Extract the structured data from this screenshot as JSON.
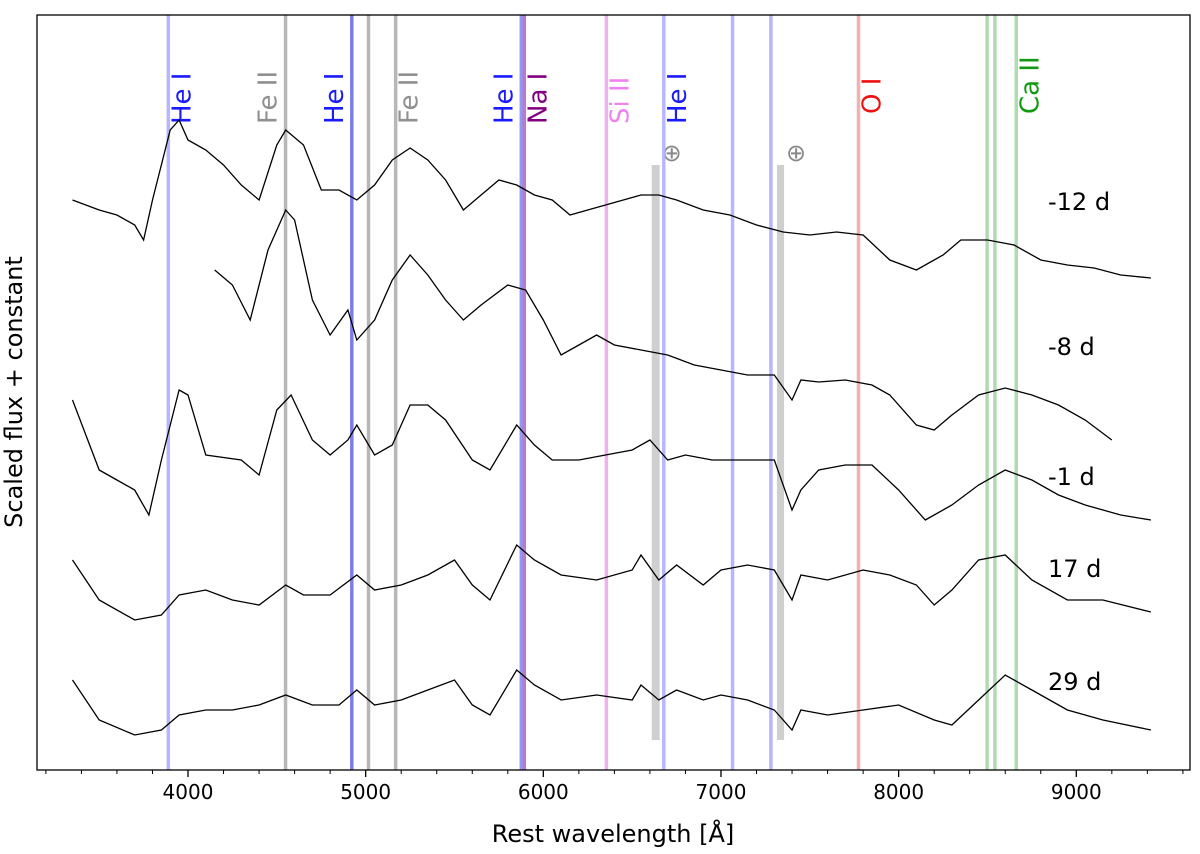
{
  "chart_data": {
    "type": "line",
    "xlabel": "Rest wavelength [Å]",
    "ylabel": "Scaled flux + constant",
    "xlim": [
      3150,
      9640
    ],
    "ylim": [
      0,
      755
    ],
    "xticks": [
      4000,
      5000,
      6000,
      7000,
      8000,
      9000
    ],
    "xminorticks": [
      3200,
      3400,
      3600,
      3800,
      4200,
      4400,
      4600,
      4800,
      5200,
      5400,
      5600,
      5800,
      6200,
      6400,
      6600,
      6800,
      7200,
      7400,
      7600,
      7800,
      8200,
      8400,
      8600,
      8800,
      9200,
      9400,
      9600
    ],
    "color": "#000000",
    "series": [
      {
        "name": "-12 d",
        "x": [
          3350,
          3500,
          3600,
          3700,
          3750,
          3800,
          3900,
          3950,
          4000,
          4100,
          4200,
          4300,
          4400,
          4500,
          4550,
          4650,
          4750,
          4850,
          4950,
          5050,
          5150,
          5250,
          5350,
          5450,
          5550,
          5650,
          5750,
          5850,
          5950,
          6050,
          6150,
          6250,
          6350,
          6450,
          6550,
          6650,
          6750,
          6900,
          7050,
          7200,
          7350,
          7500,
          7650,
          7800,
          7950,
          8100,
          8250,
          8350,
          8500,
          8650,
          8800,
          8950,
          9100,
          9250,
          9420
        ],
        "values": [
          570,
          560,
          555,
          545,
          530,
          570,
          640,
          650,
          630,
          620,
          605,
          585,
          570,
          625,
          640,
          625,
          580,
          580,
          570,
          585,
          610,
          622,
          610,
          590,
          560,
          575,
          590,
          585,
          575,
          570,
          555,
          560,
          565,
          570,
          575,
          575,
          570,
          560,
          555,
          545,
          538,
          535,
          538,
          535,
          510,
          500,
          515,
          530,
          530,
          525,
          510,
          505,
          502,
          495,
          492
        ]
      },
      {
        "name": "-8 d",
        "x": [
          4150,
          4250,
          4350,
          4450,
          4550,
          4600,
          4700,
          4800,
          4900,
          4950,
          5050,
          5150,
          5250,
          5350,
          5450,
          5550,
          5650,
          5800,
          5900,
          6000,
          6100,
          6200,
          6300,
          6400,
          6550,
          6700,
          6850,
          7000,
          7150,
          7300,
          7400,
          7450,
          7550,
          7700,
          7850,
          7950,
          8100,
          8200,
          8300,
          8450,
          8600,
          8750,
          8900,
          9050,
          9200
        ],
        "values": [
          500,
          485,
          450,
          520,
          560,
          550,
          470,
          435,
          460,
          430,
          450,
          490,
          515,
          495,
          470,
          450,
          465,
          485,
          480,
          450,
          415,
          425,
          435,
          425,
          420,
          415,
          405,
          400,
          395,
          395,
          370,
          390,
          388,
          390,
          385,
          375,
          345,
          340,
          355,
          375,
          382,
          375,
          365,
          350,
          330
        ]
      },
      {
        "name": "-1 d",
        "x": [
          3350,
          3500,
          3600,
          3700,
          3780,
          3850,
          3950,
          4000,
          4100,
          4300,
          4400,
          4500,
          4580,
          4700,
          4800,
          4900,
          4950,
          5050,
          5150,
          5250,
          5350,
          5450,
          5600,
          5700,
          5850,
          5950,
          6050,
          6200,
          6350,
          6500,
          6600,
          6700,
          6800,
          6950,
          7100,
          7300,
          7400,
          7450,
          7550,
          7700,
          7850,
          8000,
          8150,
          8300,
          8450,
          8600,
          8750,
          8900,
          9050,
          9250,
          9420
        ],
        "values": [
          370,
          300,
          290,
          280,
          255,
          310,
          380,
          375,
          315,
          310,
          295,
          360,
          375,
          330,
          315,
          330,
          345,
          315,
          325,
          365,
          365,
          350,
          310,
          300,
          345,
          325,
          310,
          310,
          315,
          320,
          330,
          310,
          315,
          310,
          310,
          310,
          260,
          280,
          300,
          305,
          305,
          280,
          250,
          265,
          285,
          300,
          290,
          275,
          265,
          255,
          250
        ]
      },
      {
        "name": "17 d",
        "x": [
          3350,
          3500,
          3700,
          3850,
          3950,
          4100,
          4250,
          4400,
          4550,
          4650,
          4800,
          4950,
          5050,
          5200,
          5350,
          5500,
          5600,
          5700,
          5850,
          5950,
          6100,
          6300,
          6500,
          6550,
          6650,
          6750,
          6900,
          7000,
          7150,
          7300,
          7400,
          7450,
          7600,
          7800,
          7950,
          8100,
          8200,
          8300,
          8450,
          8600,
          8750,
          8950,
          9150,
          9420
        ],
        "values": [
          210,
          170,
          150,
          155,
          175,
          180,
          170,
          165,
          185,
          175,
          175,
          195,
          180,
          185,
          195,
          210,
          185,
          170,
          225,
          210,
          195,
          190,
          200,
          215,
          190,
          205,
          185,
          200,
          205,
          200,
          170,
          195,
          190,
          200,
          195,
          185,
          165,
          180,
          210,
          215,
          190,
          170,
          170,
          158
        ]
      },
      {
        "name": "29 d",
        "x": [
          3350,
          3500,
          3700,
          3850,
          3950,
          4100,
          4250,
          4400,
          4550,
          4700,
          4850,
          4950,
          5050,
          5200,
          5350,
          5500,
          5600,
          5700,
          5850,
          5950,
          6100,
          6300,
          6500,
          6550,
          6650,
          6750,
          6900,
          7000,
          7150,
          7300,
          7400,
          7450,
          7600,
          7800,
          8000,
          8200,
          8300,
          8450,
          8600,
          8750,
          8950,
          9150,
          9420
        ],
        "values": [
          90,
          50,
          35,
          40,
          55,
          60,
          60,
          65,
          75,
          65,
          65,
          80,
          65,
          70,
          80,
          90,
          65,
          55,
          100,
          85,
          70,
          75,
          70,
          85,
          70,
          80,
          70,
          75,
          70,
          60,
          40,
          60,
          55,
          60,
          65,
          50,
          45,
          70,
          95,
          80,
          60,
          50,
          40
        ]
      }
    ],
    "lines": [
      {
        "wavelength": 3889,
        "color": "#b0b0ff",
        "label": "He I",
        "label_color": "#1a1aff"
      },
      {
        "wavelength": 4549,
        "color": "#b0b0b0",
        "label": "Fe II",
        "label_color": "#909090"
      },
      {
        "wavelength": 4922,
        "color": "#7070e8",
        "label": "He I",
        "label_color": "#1a1aff"
      },
      {
        "wavelength": 5016,
        "color": "#b0b0b0"
      },
      {
        "wavelength": 5169,
        "color": "#b0b0b0",
        "label": "Fe II",
        "label_color": "#909090"
      },
      {
        "wavelength": 5876,
        "color": "#8c8cf0",
        "label": "He I",
        "label_color": "#1a1aff"
      },
      {
        "wavelength": 5893,
        "color": "#b070c8",
        "label": "Na I",
        "label_color": "#800080"
      },
      {
        "wavelength": 6355,
        "color": "#f0a8ea",
        "label": "Si II",
        "label_color": "#ee82ee"
      },
      {
        "wavelength": 6678,
        "color": "#b0b0ff",
        "label": "He I",
        "label_color": "#1a1aff"
      },
      {
        "wavelength": 7065,
        "color": "#b0b0ff"
      },
      {
        "wavelength": 7281,
        "color": "#b0b0ff"
      },
      {
        "wavelength": 7774,
        "color": "#f2a8a8",
        "label": "O I",
        "label_color": "#ee1111"
      },
      {
        "wavelength": 8498,
        "color": "#a8d8a8"
      },
      {
        "wavelength": 8542,
        "color": "#a8d8a8"
      },
      {
        "wavelength": 8662,
        "color": "#a8d8a8",
        "label": "Ca II",
        "label_color": "#119911"
      }
    ],
    "telluric": [
      {
        "range": [
          6610,
          6655
        ],
        "yrange": [
          30,
          605
        ],
        "label": "⊕"
      },
      {
        "range": [
          7315,
          7355
        ],
        "yrange": [
          30,
          605
        ],
        "label": "⊕"
      }
    ]
  }
}
